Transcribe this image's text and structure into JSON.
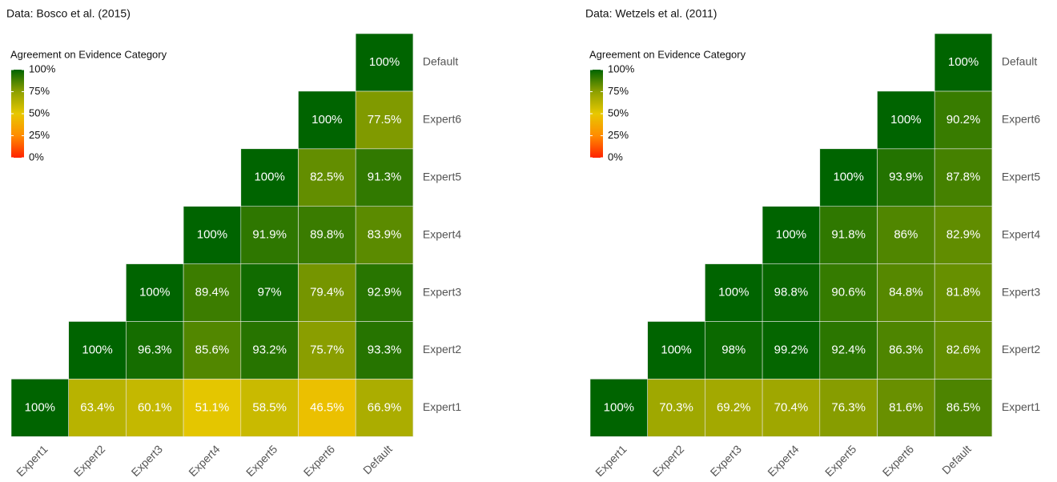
{
  "chart_data": [
    {
      "type": "heatmap",
      "title": "Data: Bosco et al. (2015)",
      "x_categories": [
        "Expert1",
        "Expert2",
        "Expert3",
        "Expert4",
        "Expert5",
        "Expert6",
        "Default"
      ],
      "y_categories": [
        "Expert1",
        "Expert2",
        "Expert3",
        "Expert4",
        "Expert5",
        "Expert6",
        "Default"
      ],
      "values": [
        [
          100,
          63.4,
          60.1,
          51.1,
          58.5,
          46.5,
          66.9
        ],
        [
          null,
          100,
          96.3,
          85.6,
          93.2,
          75.7,
          93.3
        ],
        [
          null,
          null,
          100,
          89.4,
          97,
          79.4,
          92.9
        ],
        [
          null,
          null,
          null,
          100,
          91.9,
          89.8,
          83.9
        ],
        [
          null,
          null,
          null,
          null,
          100,
          82.5,
          91.3
        ],
        [
          null,
          null,
          null,
          null,
          null,
          100,
          77.5
        ],
        [
          null,
          null,
          null,
          null,
          null,
          null,
          100
        ]
      ],
      "value_labels": [
        [
          "100%",
          "63.4%",
          "60.1%",
          "51.1%",
          "58.5%",
          "46.5%",
          "66.9%"
        ],
        [
          null,
          "100%",
          "96.3%",
          "85.6%",
          "93.2%",
          "75.7%",
          "93.3%"
        ],
        [
          null,
          null,
          "100%",
          "89.4%",
          "97%",
          "79.4%",
          "92.9%"
        ],
        [
          null,
          null,
          null,
          "100%",
          "91.9%",
          "89.8%",
          "83.9%"
        ],
        [
          null,
          null,
          null,
          null,
          "100%",
          "82.5%",
          "91.3%"
        ],
        [
          null,
          null,
          null,
          null,
          null,
          "100%",
          "77.5%"
        ],
        [
          null,
          null,
          null,
          null,
          null,
          null,
          "100%"
        ]
      ],
      "legend_title": "Agreement on Evidence Category",
      "colorscale": [
        {
          "value": 0,
          "color": "#ff2200"
        },
        {
          "value": 25,
          "color": "#ff8c00"
        },
        {
          "value": 50,
          "color": "#e8c800"
        },
        {
          "value": 75,
          "color": "#8ea000"
        },
        {
          "value": 100,
          "color": "#006400"
        }
      ],
      "clim": [
        0,
        100
      ],
      "cticks": [
        {
          "value": 0,
          "label": "0%"
        },
        {
          "value": 25,
          "label": "25%"
        },
        {
          "value": 50,
          "label": "50%"
        },
        {
          "value": 75,
          "label": "75%"
        },
        {
          "value": 100,
          "label": "100%"
        }
      ]
    },
    {
      "type": "heatmap",
      "title": "Data: Wetzels et al. (2011)",
      "x_categories": [
        "Expert1",
        "Expert2",
        "Expert3",
        "Expert4",
        "Expert5",
        "Expert6",
        "Default"
      ],
      "y_categories": [
        "Expert1",
        "Expert2",
        "Expert3",
        "Expert4",
        "Expert5",
        "Expert6",
        "Default"
      ],
      "values": [
        [
          100,
          70.3,
          69.2,
          70.4,
          76.3,
          81.6,
          86.5
        ],
        [
          null,
          100,
          98,
          99.2,
          92.4,
          86.3,
          82.6
        ],
        [
          null,
          null,
          100,
          98.8,
          90.6,
          84.8,
          81.8
        ],
        [
          null,
          null,
          null,
          100,
          91.8,
          86,
          82.9
        ],
        [
          null,
          null,
          null,
          null,
          100,
          93.9,
          87.8
        ],
        [
          null,
          null,
          null,
          null,
          null,
          100,
          90.2
        ],
        [
          null,
          null,
          null,
          null,
          null,
          null,
          100
        ]
      ],
      "value_labels": [
        [
          "100%",
          "70.3%",
          "69.2%",
          "70.4%",
          "76.3%",
          "81.6%",
          "86.5%"
        ],
        [
          null,
          "100%",
          "98%",
          "99.2%",
          "92.4%",
          "86.3%",
          "82.6%"
        ],
        [
          null,
          null,
          "100%",
          "98.8%",
          "90.6%",
          "84.8%",
          "81.8%"
        ],
        [
          null,
          null,
          null,
          "100%",
          "91.8%",
          "86%",
          "82.9%"
        ],
        [
          null,
          null,
          null,
          null,
          "100%",
          "93.9%",
          "87.8%"
        ],
        [
          null,
          null,
          null,
          null,
          null,
          "100%",
          "90.2%"
        ],
        [
          null,
          null,
          null,
          null,
          null,
          null,
          "100%"
        ]
      ],
      "legend_title": "Agreement on Evidence Category",
      "colorscale": [
        {
          "value": 0,
          "color": "#ff2200"
        },
        {
          "value": 25,
          "color": "#ff8c00"
        },
        {
          "value": 50,
          "color": "#e8c800"
        },
        {
          "value": 75,
          "color": "#8ea000"
        },
        {
          "value": 100,
          "color": "#006400"
        }
      ],
      "clim": [
        0,
        100
      ],
      "cticks": [
        {
          "value": 0,
          "label": "0%"
        },
        {
          "value": 25,
          "label": "25%"
        },
        {
          "value": 50,
          "label": "50%"
        },
        {
          "value": 75,
          "label": "75%"
        },
        {
          "value": 100,
          "label": "100%"
        }
      ]
    }
  ]
}
